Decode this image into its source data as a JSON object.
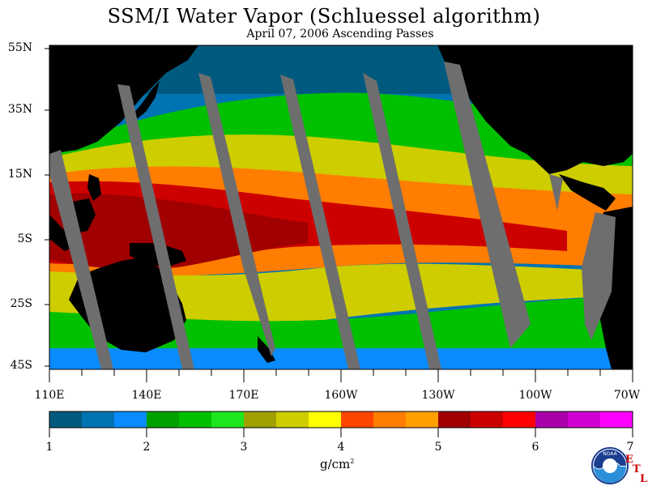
{
  "title": "SSM/I Water Vapor (Schluessel algorithm)",
  "subtitle": "April 07, 2006  Ascending Passes",
  "lat_labels": [
    "55N",
    "35N",
    "15N",
    "5S",
    "25S",
    "45S"
  ],
  "lon_labels": [
    "110E",
    "140E",
    "170E",
    "160W",
    "130W",
    "100W",
    "70W"
  ],
  "colorbar": {
    "ticks": [
      "1",
      "2",
      "3",
      "4",
      "5",
      "6",
      "7"
    ],
    "unit": "g/cm",
    "unit_exp": "2",
    "colors": [
      "#005a80",
      "#0073b3",
      "#0a8cff",
      "#00a000",
      "#00c000",
      "#1ee61e",
      "#a0a000",
      "#cdcd00",
      "#ffff00",
      "#ff4600",
      "#ff7d00",
      "#ffa000",
      "#a00000",
      "#cd0000",
      "#ff0000",
      "#aa00aa",
      "#d200d2",
      "#ff00ff"
    ]
  },
  "colors": {
    "land": "#000000",
    "no_data": "#6e6e6e"
  },
  "logo": {
    "text": "NOAA",
    "etl_letters": [
      "E",
      "T",
      "L"
    ]
  }
}
